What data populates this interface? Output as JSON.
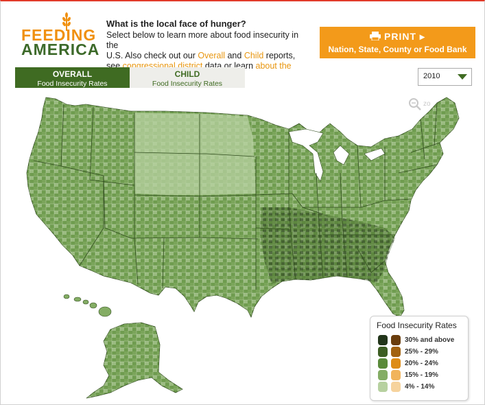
{
  "brand": {
    "line1": "FEEDING",
    "line2": "AMERICA",
    "orange": "#f0900f",
    "green": "#3d6a2a"
  },
  "header": {
    "question": "What is the local face of hunger?",
    "line1": "Select below to learn more about food insecurity in the",
    "line2_pre": "U.S. Also check out our ",
    "overall_link": "Overall",
    "and": " and ",
    "child_link": "Child",
    "line2_post": " reports,",
    "line3_pre": "see ",
    "district_link": "congressional district",
    "line3_mid": " data or learn ",
    "about_link": "about the data",
    "line3_post": "."
  },
  "print_button": {
    "icon": "printer-icon",
    "label": "PRINT ▸",
    "sub": "Nation, State, County or Food Bank",
    "color": "#f39a1a"
  },
  "tabs": [
    {
      "title": "OVERALL",
      "subtitle": "Food Insecurity Rates",
      "active": true
    },
    {
      "title": "CHILD",
      "subtitle": "Food Insecurity Rates",
      "active": false
    }
  ],
  "year_select": {
    "value": "2010"
  },
  "zoom": {
    "label": "zo",
    "icon": "magnifier-icon"
  },
  "legend": {
    "title": "Food Insecurity Rates",
    "rows": [
      {
        "label": "30% and above",
        "green": "#22351a",
        "orange": "#6a3d0c"
      },
      {
        "label": "25% - 29%",
        "green": "#3d5e23",
        "orange": "#a2620f"
      },
      {
        "label": "20% - 24%",
        "green": "#5a8a3a",
        "orange": "#dd8c16"
      },
      {
        "label": "15% - 19%",
        "green": "#84ad64",
        "orange": "#f1b45c"
      },
      {
        "label": "4% - 14%",
        "green": "#b7d1a0",
        "orange": "#f6d39d"
      }
    ]
  }
}
